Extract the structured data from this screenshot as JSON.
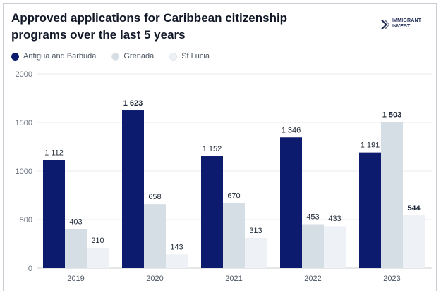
{
  "title": "Approved applications for Caribbean citizenship programs over the last 5 years",
  "logo": {
    "line1": "IMMIGRANT",
    "line2": "INVEST",
    "icon": "logo-arrow-icon",
    "color": "#1f2a55"
  },
  "chart_data": {
    "type": "bar",
    "title": "Approved applications for Caribbean citizenship programs over the last 5 years",
    "xlabel": "",
    "ylabel": "",
    "ylim": [
      0,
      2000
    ],
    "yticks": [
      0,
      500,
      1000,
      1500,
      2000
    ],
    "grid": true,
    "legend_position": "top-left",
    "categories": [
      "2019",
      "2020",
      "2021",
      "2022",
      "2023"
    ],
    "series": [
      {
        "name": "Antigua and Barbuda",
        "color": "#0d1b6e",
        "values": [
          1112,
          1623,
          1152,
          1346,
          1191
        ],
        "labels": [
          "1 112",
          "1 623",
          "1 152",
          "1 346",
          "1 191"
        ],
        "bold": [
          false,
          true,
          false,
          false,
          false
        ]
      },
      {
        "name": "Grenada",
        "color": "#d5dee4",
        "values": [
          403,
          658,
          670,
          453,
          1503
        ],
        "labels": [
          "403",
          "658",
          "670",
          "453",
          "1 503"
        ],
        "bold": [
          false,
          false,
          false,
          false,
          true
        ]
      },
      {
        "name": "St Lucia",
        "color": "#eef2f7",
        "values": [
          210,
          143,
          313,
          433,
          544
        ],
        "labels": [
          "210",
          "143",
          "313",
          "433",
          "544"
        ],
        "bold": [
          false,
          false,
          false,
          false,
          true
        ]
      }
    ]
  }
}
